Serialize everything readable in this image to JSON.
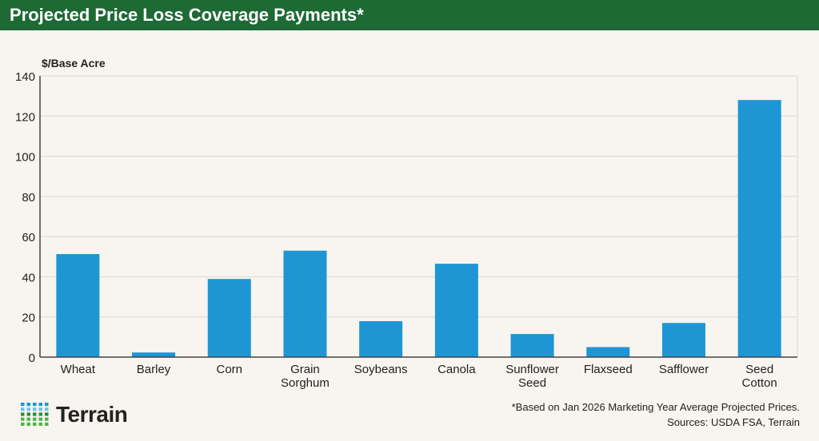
{
  "title": "Projected Price Loss Coverage Payments*",
  "chart_data": {
    "type": "bar",
    "title": "Projected Price Loss Coverage Payments*",
    "ylabel": "$/Base Acre",
    "xlabel": "",
    "categories": [
      "Wheat",
      "Barley",
      "Corn",
      "Grain Sorghum",
      "Soybeans",
      "Canola",
      "Sunflower Seed",
      "Flaxseed",
      "Safflower",
      "Seed Cotton"
    ],
    "values": [
      51.3,
      2.3,
      38.9,
      53.0,
      17.9,
      46.5,
      11.5,
      5.0,
      17.0,
      128.0
    ],
    "ylim": [
      0,
      140
    ],
    "yticks": [
      0,
      20,
      40,
      60,
      80,
      100,
      120,
      140
    ],
    "grid": true,
    "bar_color": "#1e96d4"
  },
  "footnote": "*Based on Jan 2026 Marketing Year Average Projected Prices.",
  "sources": "Sources: USDA FSA, Terrain",
  "logo": {
    "text": "Terrain",
    "colors": [
      "#1e96d4",
      "#6cc3ee",
      "#2f8a3c",
      "#4cb848"
    ]
  },
  "colors": {
    "title_bar": "#1e6a35",
    "background": "#f8f4f0"
  }
}
